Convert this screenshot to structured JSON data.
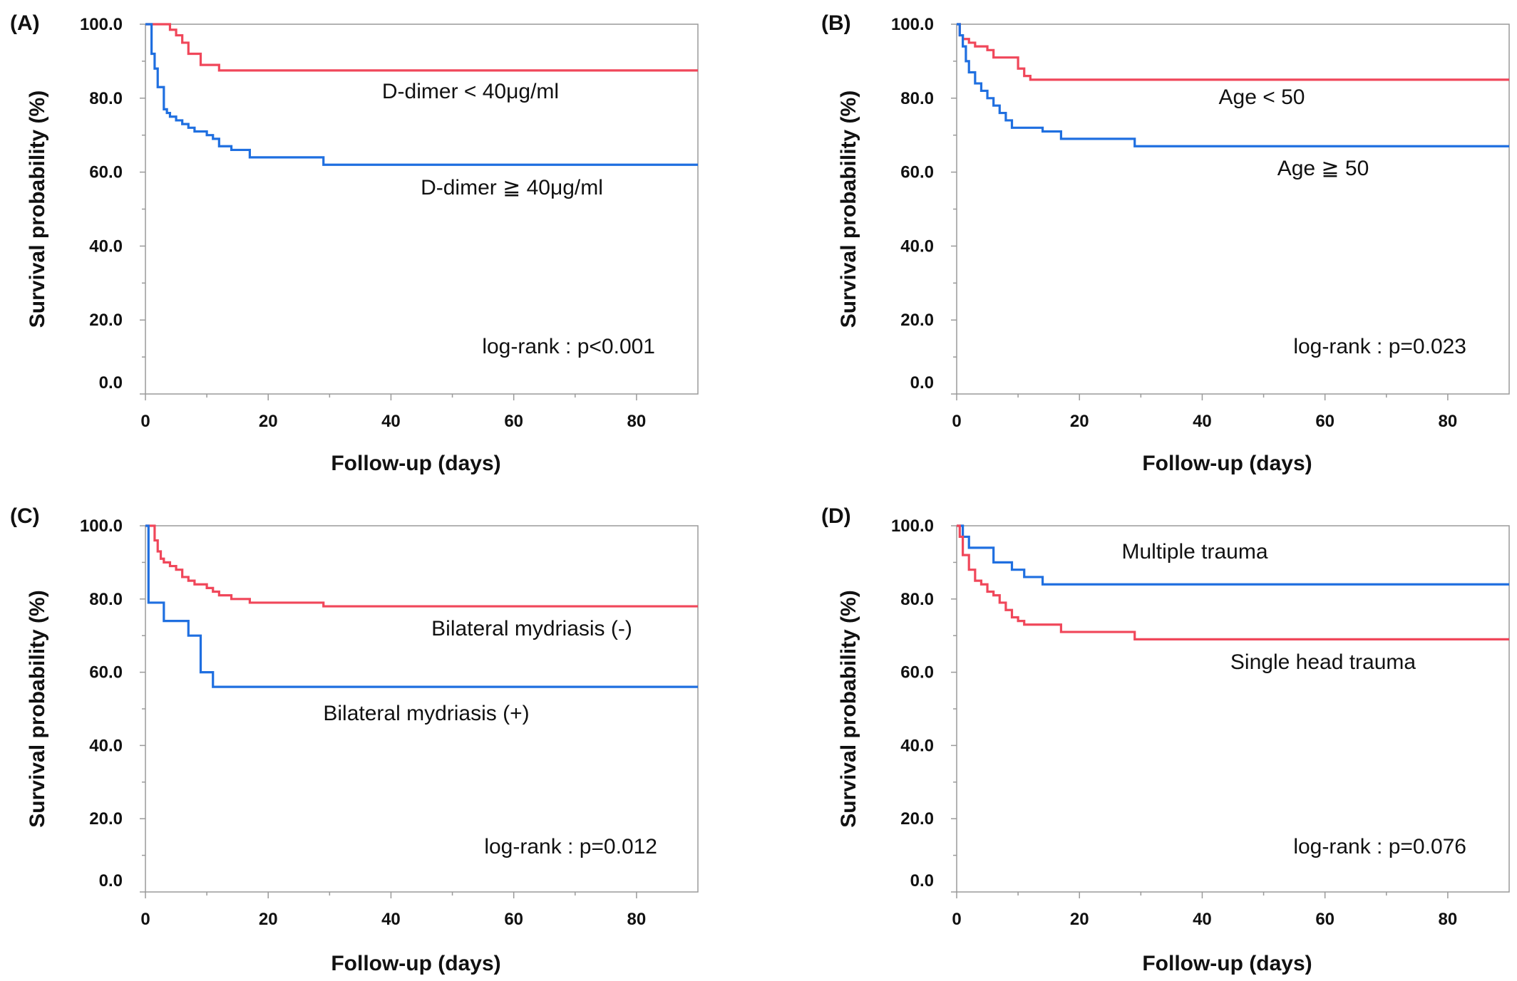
{
  "chart_data": [
    {
      "panel": "(A)",
      "type": "line",
      "step": true,
      "ylabel": "Survival probability (%)",
      "xlabel": "Follow-up (days)",
      "ylim": [
        0,
        100
      ],
      "xlim": [
        0,
        90
      ],
      "yticks": [
        "0.0",
        "20.0",
        "40.0",
        "60.0",
        "80.0",
        "100.0"
      ],
      "xticks": [
        "0",
        "20",
        "40",
        "60",
        "80"
      ],
      "series": [
        {
          "name": "D-dimer < 40μg/ml",
          "color": "#f0475a",
          "x": [
            0,
            2,
            4,
            5,
            6,
            7,
            9,
            12,
            90
          ],
          "y": [
            100,
            100,
            98.5,
            97,
            95,
            92,
            89,
            87.5,
            87.5
          ]
        },
        {
          "name": "D-dimer ≧ 40μg/ml",
          "color": "#1f6fe0",
          "x": [
            0,
            1,
            1.5,
            2,
            3,
            3.5,
            4,
            5,
            6,
            7,
            8,
            10,
            11,
            12,
            14,
            17,
            29,
            90
          ],
          "y": [
            100,
            92,
            88,
            83,
            77,
            76,
            75,
            74,
            73,
            72,
            71,
            70,
            69,
            67,
            66,
            64,
            62,
            62
          ]
        }
      ],
      "annotations": [
        "D-dimer < 40μg/ml",
        "D-dimer ≧ 40μg/ml",
        "log-rank : p<0.001"
      ]
    },
    {
      "panel": "(B)",
      "type": "line",
      "step": true,
      "ylabel": "Survival probability (%)",
      "xlabel": "Follow-up (days)",
      "ylim": [
        0,
        100
      ],
      "xlim": [
        0,
        90
      ],
      "yticks": [
        "0.0",
        "20.0",
        "40.0",
        "60.0",
        "80.0",
        "100.0"
      ],
      "xticks": [
        "0",
        "20",
        "40",
        "60",
        "80"
      ],
      "series": [
        {
          "name": "Age < 50",
          "color": "#f0475a",
          "x": [
            0,
            0.5,
            1,
            2,
            3,
            5,
            6,
            10,
            11,
            12,
            90
          ],
          "y": [
            100,
            97,
            96,
            95,
            94,
            93,
            91,
            88,
            86,
            85,
            85
          ]
        },
        {
          "name": "Age ≧ 50",
          "color": "#1f6fe0",
          "x": [
            0,
            0.5,
            1,
            1.5,
            2,
            3,
            4,
            5,
            6,
            7,
            8,
            9,
            14,
            17,
            29,
            90
          ],
          "y": [
            100,
            97,
            94,
            90,
            87,
            84,
            82,
            80,
            78,
            76,
            74,
            72,
            71,
            69,
            67,
            67
          ]
        }
      ],
      "annotations": [
        "Age < 50",
        "Age ≧ 50",
        "log-rank : p=0.023"
      ]
    },
    {
      "panel": "(C)",
      "type": "line",
      "step": true,
      "ylabel": "Survival probability (%)",
      "xlabel": "Follow-up (days)",
      "ylim": [
        0,
        100
      ],
      "xlim": [
        0,
        90
      ],
      "yticks": [
        "0.0",
        "20.0",
        "40.0",
        "60.0",
        "80.0",
        "100.0"
      ],
      "xticks": [
        "0",
        "20",
        "40",
        "60",
        "80"
      ],
      "series": [
        {
          "name": "Bilateral mydriasis (-)",
          "color": "#f0475a",
          "x": [
            0,
            1,
            1.5,
            2,
            2.5,
            3,
            4,
            5,
            6,
            7,
            8,
            10,
            11,
            12,
            14,
            17,
            29,
            90
          ],
          "y": [
            100,
            100,
            96,
            93,
            91,
            90,
            89,
            88,
            86,
            85,
            84,
            83,
            82,
            81,
            80,
            79,
            78,
            78
          ]
        },
        {
          "name": "Bilateral mydriasis (+)",
          "color": "#1f6fe0",
          "x": [
            0,
            0.5,
            3,
            7,
            9,
            11,
            90
          ],
          "y": [
            100,
            79,
            74,
            70,
            60,
            56,
            56
          ]
        }
      ],
      "annotations": [
        "Bilateral mydriasis (-)",
        "Bilateral mydriasis (+)",
        "log-rank : p=0.012"
      ]
    },
    {
      "panel": "(D)",
      "type": "line",
      "step": true,
      "ylabel": "Survival probability (%)",
      "xlabel": "Follow-up (days)",
      "ylim": [
        0,
        100
      ],
      "xlim": [
        0,
        90
      ],
      "yticks": [
        "0.0",
        "20.0",
        "40.0",
        "60.0",
        "80.0",
        "100.0"
      ],
      "xticks": [
        "0",
        "20",
        "40",
        "60",
        "80"
      ],
      "series": [
        {
          "name": "Multiple trauma",
          "color": "#1f6fe0",
          "x": [
            0,
            1,
            2,
            6,
            9,
            11,
            14,
            90
          ],
          "y": [
            100,
            97,
            94,
            90,
            88,
            86,
            84,
            84
          ]
        },
        {
          "name": "Single head trauma",
          "color": "#f0475a",
          "x": [
            0,
            0.5,
            1,
            2,
            3,
            4,
            5,
            6,
            7,
            8,
            9,
            10,
            11,
            12,
            17,
            29,
            90
          ],
          "y": [
            100,
            97,
            92,
            88,
            85,
            84,
            82,
            81,
            79,
            77,
            75,
            74,
            73,
            73,
            71,
            69,
            69
          ]
        }
      ],
      "annotations": [
        "Multiple trauma",
        "Single head trauma",
        "log-rank : p=0.076"
      ]
    }
  ]
}
